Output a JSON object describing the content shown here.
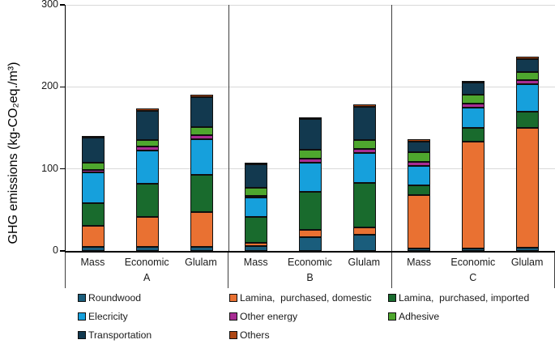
{
  "chart_data": {
    "type": "bar",
    "stacked": true,
    "ylabel": "GHG emissions (kg-CO₂eq./m³)",
    "ylim": [
      0,
      300
    ],
    "yticks": [
      0,
      100,
      200,
      300
    ],
    "grid": "horizontal",
    "grid_color": "#d9d9d9",
    "groups": [
      "A",
      "B",
      "C"
    ],
    "categories": [
      "Mass",
      "Economic",
      "Glulam"
    ],
    "bar_order": [
      "A-Mass",
      "A-Economic",
      "A-Glulam",
      "B-Mass",
      "B-Economic",
      "B-Glulam",
      "C-Mass",
      "C-Economic",
      "C-Glulam"
    ],
    "series": [
      {
        "name": "Roundwood",
        "color": "#1a5d7c",
        "values": [
          5,
          5,
          5,
          6,
          17,
          20,
          3,
          3,
          4
        ]
      },
      {
        "name": "Lamina,  purchased, domestic",
        "color": "#e97132",
        "values": [
          26,
          36,
          42,
          4,
          9,
          9,
          65,
          130,
          146
        ]
      },
      {
        "name": "Lamina,  purchased, imported",
        "color": "#196b2d",
        "values": [
          27,
          41,
          46,
          31,
          46,
          54,
          12,
          17,
          20
        ]
      },
      {
        "name": "Elecricity",
        "color": "#16a0dc",
        "values": [
          38,
          40,
          43,
          24,
          36,
          36,
          24,
          25,
          33
        ]
      },
      {
        "name": "Other energy",
        "color": "#a82c93",
        "values": [
          3,
          5,
          5,
          2,
          5,
          5,
          5,
          5,
          5
        ]
      },
      {
        "name": "Adhesive",
        "color": "#4ea72e",
        "values": [
          9,
          8,
          10,
          10,
          10,
          11,
          11,
          11,
          10
        ]
      },
      {
        "name": "Transportation",
        "color": "#12394f",
        "values": [
          30,
          36,
          37,
          29,
          38,
          41,
          13,
          14,
          16
        ]
      },
      {
        "name": "Others",
        "color": "#ad4614",
        "values": [
          2,
          3,
          3,
          2,
          2,
          3,
          3,
          2,
          3
        ]
      }
    ],
    "totals": [
      140,
      174,
      191,
      108,
      163,
      179,
      136,
      207,
      237
    ],
    "legend_position": "bottom",
    "legend_order_row_major": [
      "Roundwood",
      "Lamina,  purchased, domestic",
      "Lamina,  purchased, imported",
      "Elecricity",
      "Other energy",
      "Adhesive",
      "Transportation",
      "Others"
    ]
  }
}
